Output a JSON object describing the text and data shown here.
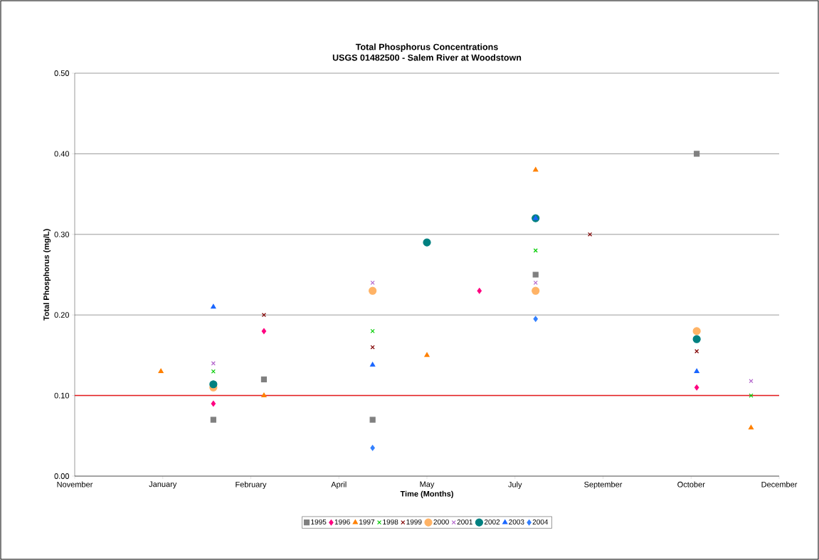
{
  "chart_data": {
    "type": "scatter",
    "title": "Total Phosphorus Concentrations",
    "subtitle": "USGS 01482500 - Salem River at Woodstown",
    "xlabel": "Time (Months)",
    "ylabel": "Total Phosphorus (mg/L)",
    "xlim": [
      "2001-11-24",
      "2002-12-05"
    ],
    "xticks": [
      {
        "value": "2001-11-24",
        "label": "November"
      },
      {
        "value": "2002-01-10",
        "label": "January"
      },
      {
        "value": "2002-02-26",
        "label": "February"
      },
      {
        "value": "2002-04-14",
        "label": "April"
      },
      {
        "value": "2002-05-31",
        "label": "May"
      },
      {
        "value": "2002-07-17",
        "label": "July"
      },
      {
        "value": "2002-09-02",
        "label": "September"
      },
      {
        "value": "2002-10-19",
        "label": "October"
      },
      {
        "value": "2002-12-05",
        "label": "December"
      }
    ],
    "ylim": [
      0,
      0.5
    ],
    "yticks": [
      {
        "value": 0,
        "label": "0.00"
      },
      {
        "value": 0.1,
        "label": "0.10"
      },
      {
        "value": 0.2,
        "label": "0.20"
      },
      {
        "value": 0.3,
        "label": "0.30"
      },
      {
        "value": 0.4,
        "label": "0.40"
      },
      {
        "value": 0.5,
        "label": "0.50"
      }
    ],
    "grid": "y",
    "legend": "bottom",
    "ref_lines": [
      {
        "axis": "y",
        "value": 0.1,
        "color": "#e41a1c"
      }
    ],
    "series": [
      {
        "name": "1995",
        "color": "#808080",
        "marker": "square",
        "x": [
          "2002-02-06",
          "2002-03-05",
          "2002-05-02",
          "2002-07-28",
          "2002-10-22"
        ],
        "values": [
          0.07,
          0.12,
          0.07,
          0.25,
          0.4
        ]
      },
      {
        "name": "1996",
        "color": "#ff0080",
        "marker": "diamond",
        "x": [
          "2002-02-06",
          "2002-03-05",
          "2002-06-28",
          "2002-10-22"
        ],
        "values": [
          0.09,
          0.18,
          0.23,
          0.11
        ]
      },
      {
        "name": "1997",
        "color": "#ff8000",
        "marker": "triangle",
        "x": [
          "2002-01-09",
          "2002-03-05",
          "2002-05-31",
          "2002-07-28",
          "2002-11-20"
        ],
        "values": [
          0.13,
          0.1,
          0.15,
          0.38,
          0.06
        ]
      },
      {
        "name": "1998",
        "color": "#00cc00",
        "marker": "cross",
        "x": [
          "2002-02-06",
          "2002-05-02",
          "2002-07-28",
          "2002-11-20"
        ],
        "values": [
          0.13,
          0.18,
          0.28,
          0.1
        ]
      },
      {
        "name": "1999",
        "color": "#800000",
        "marker": "cross",
        "x": [
          "2002-03-05",
          "2002-05-02",
          "2002-08-26",
          "2002-10-22"
        ],
        "values": [
          0.2,
          0.16,
          0.3,
          0.155
        ]
      },
      {
        "name": "2000",
        "color": "#ffb366",
        "marker": "circle",
        "x": [
          "2002-02-06",
          "2002-05-02",
          "2002-07-28",
          "2002-10-22"
        ],
        "values": [
          0.11,
          0.23,
          0.23,
          0.18
        ]
      },
      {
        "name": "2001",
        "color": "#b366cc",
        "marker": "cross",
        "x": [
          "2002-02-06",
          "2002-05-02",
          "2002-07-28",
          "2002-11-20"
        ],
        "values": [
          0.14,
          0.24,
          0.24,
          0.118
        ]
      },
      {
        "name": "2002",
        "color": "#008080",
        "marker": "circle",
        "x": [
          "2002-02-06",
          "2002-05-31",
          "2002-07-28",
          "2002-10-22"
        ],
        "values": [
          0.114,
          0.29,
          0.32,
          0.17
        ]
      },
      {
        "name": "2003",
        "color": "#1a66ff",
        "marker": "triangle",
        "x": [
          "2002-02-06",
          "2002-05-02",
          "2002-07-28",
          "2002-10-22"
        ],
        "values": [
          0.21,
          0.138,
          0.32,
          0.13
        ]
      },
      {
        "name": "2004",
        "color": "#3380ff",
        "marker": "diamond",
        "x": [
          "2002-05-02",
          "2002-07-28"
        ],
        "values": [
          0.035,
          0.195
        ]
      }
    ]
  }
}
